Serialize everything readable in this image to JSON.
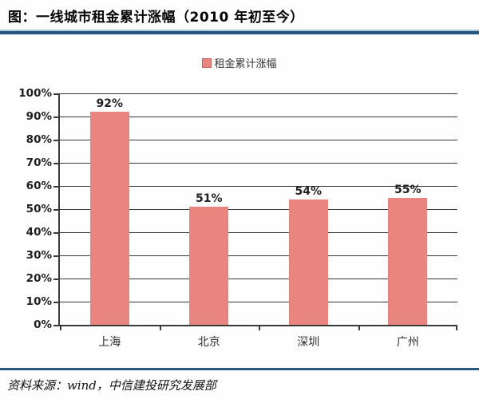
{
  "header": {
    "title": "图：一线城市租金累计涨幅（2010 年初至今）"
  },
  "chart_data": {
    "type": "bar",
    "title": "一线城市租金累计涨幅（2010 年初至今）",
    "legend": "租金累计涨幅",
    "legend_position": "top-center",
    "categories": [
      "上海",
      "北京",
      "深圳",
      "广州"
    ],
    "values": [
      92,
      51,
      54,
      55
    ],
    "value_labels": [
      "92%",
      "51%",
      "54%",
      "55%"
    ],
    "xlabel": "",
    "ylabel": "",
    "ylim": [
      0,
      100
    ],
    "ytick_step": 10,
    "ytick_labels": [
      "0%",
      "10%",
      "20%",
      "30%",
      "40%",
      "50%",
      "60%",
      "70%",
      "80%",
      "90%",
      "100%"
    ],
    "grid": "horizontal",
    "bar_color": "#E9857F"
  },
  "footer": {
    "source": "资料来源：wind，中信建投研究发展部"
  },
  "colors": {
    "accent_rule": "#27577E",
    "bar": "#E9857F",
    "grid": "#383838",
    "axis": "#3A3A3A"
  }
}
